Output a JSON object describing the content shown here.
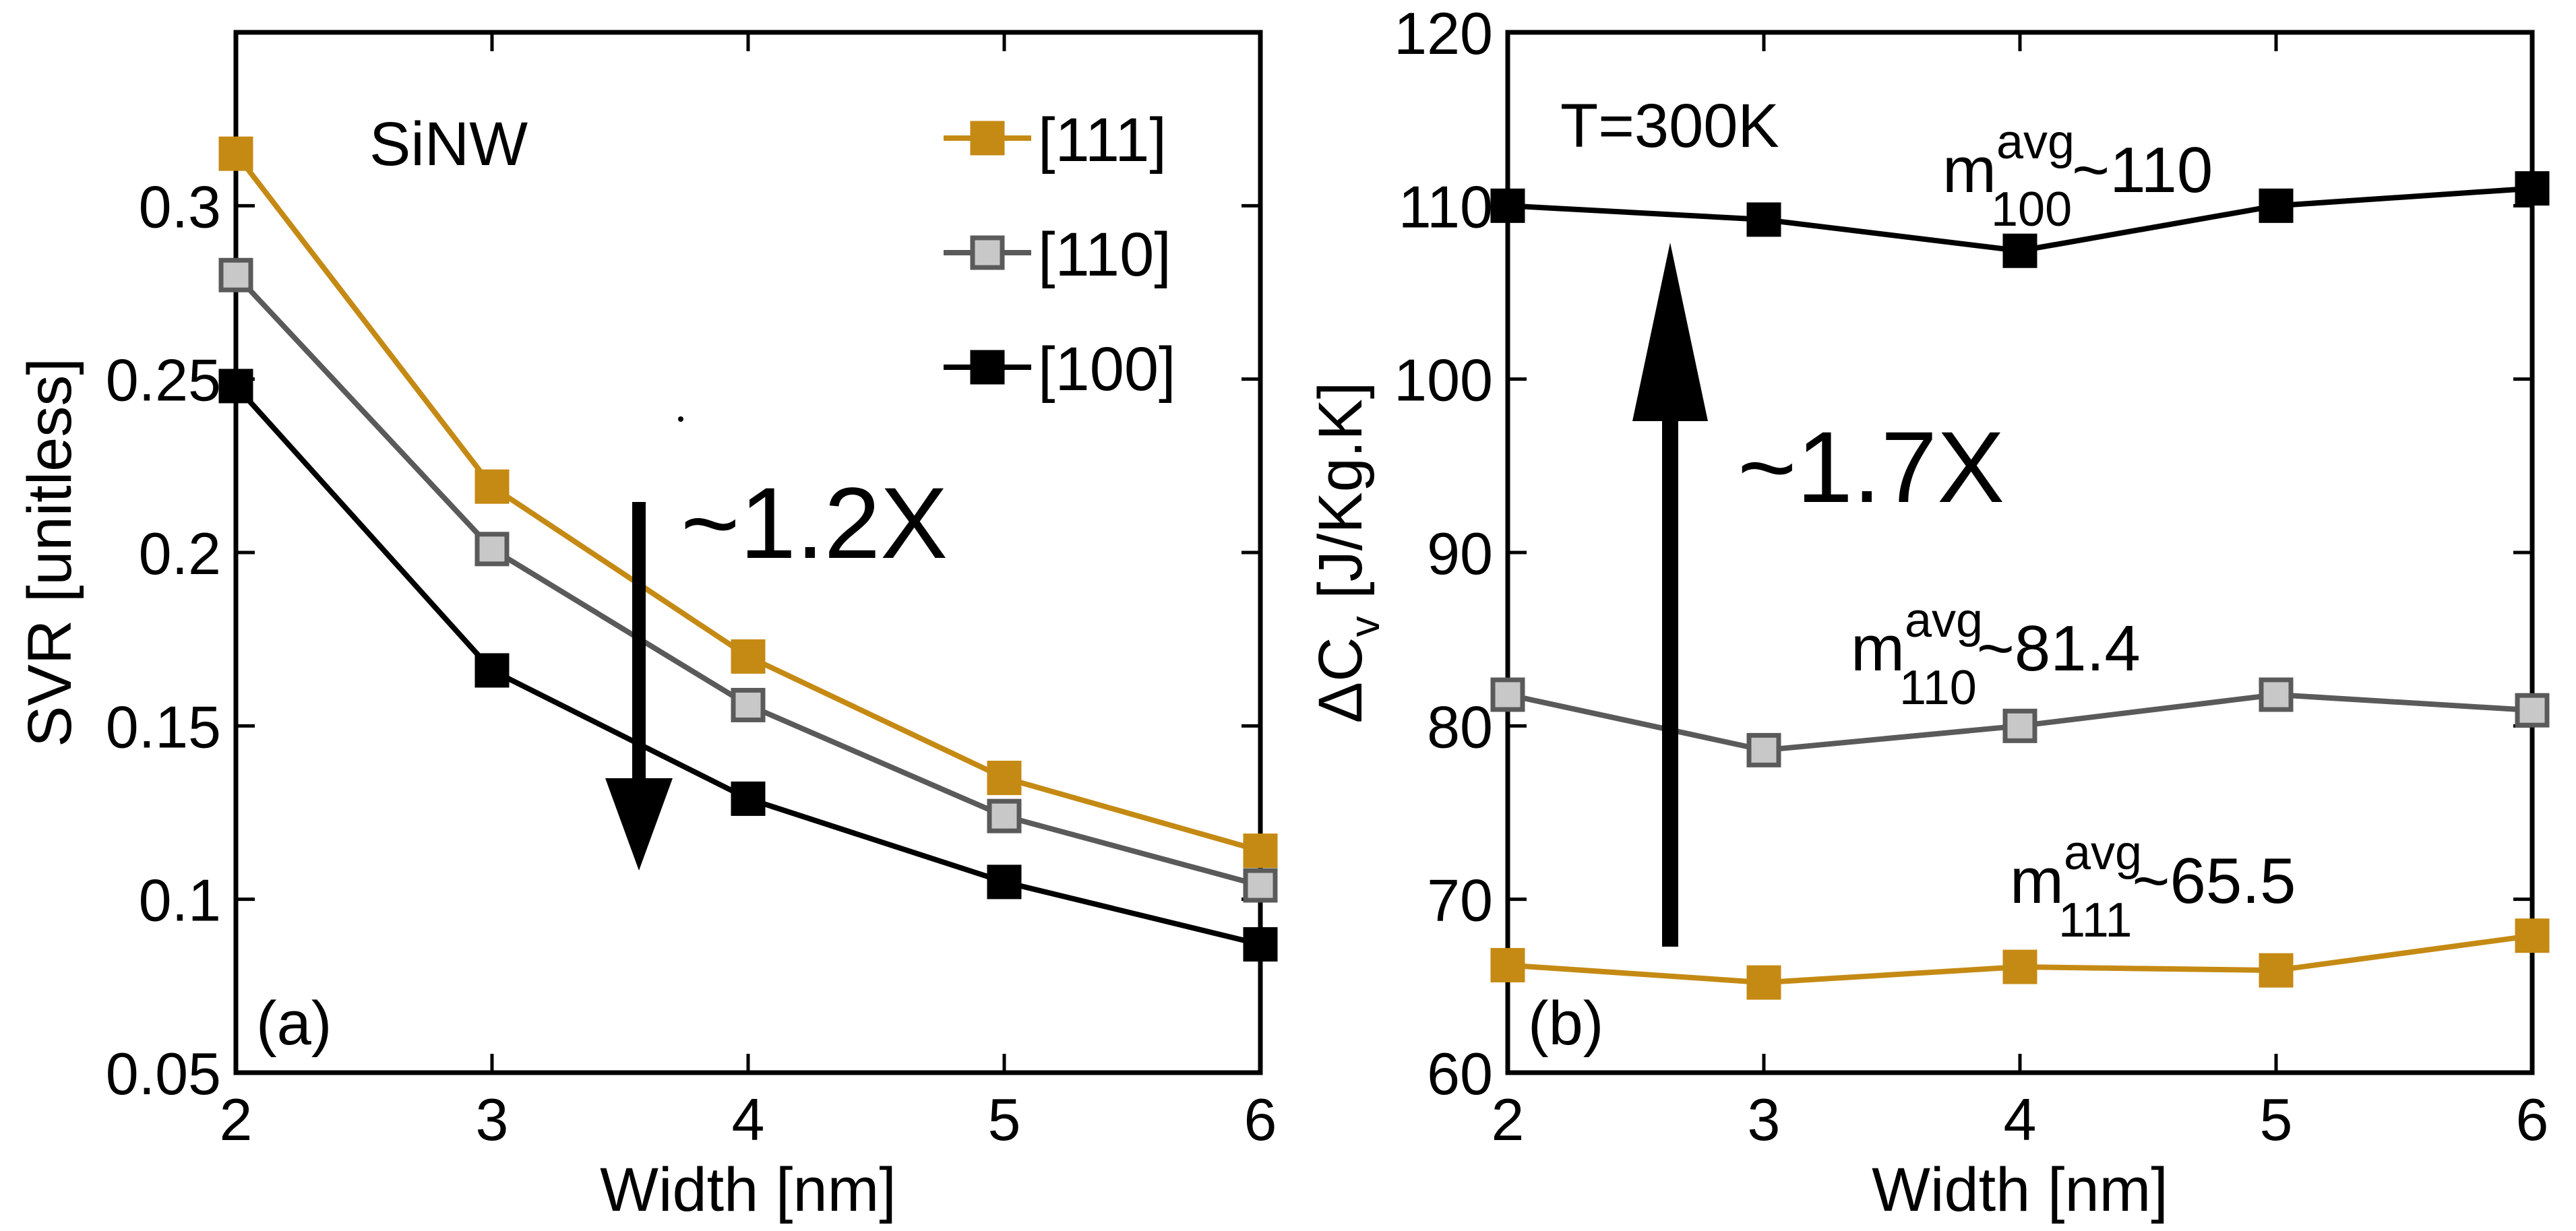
{
  "chart_data": [
    {
      "type": "line",
      "panel_label": "(a)",
      "annotation": "SiNW",
      "arrow_label": "~1.2X",
      "xlabel": "Width [nm]",
      "ylabel": "SVR [unitless]",
      "xlim": [
        2,
        6
      ],
      "ylim": [
        0.05,
        0.35
      ],
      "x_ticks": [
        2,
        3,
        4,
        5,
        6
      ],
      "x_tick_labels": [
        "2",
        "3",
        "4",
        "5",
        "6"
      ],
      "y_ticks": [
        0.05,
        0.1,
        0.15,
        0.2,
        0.25,
        0.3
      ],
      "y_tick_labels": [
        "0.05",
        "0.1",
        "0.15",
        "0.2",
        "0.25",
        "0.3"
      ],
      "grid": false,
      "legend_position": "top-right",
      "x": [
        2,
        3,
        4,
        5,
        6
      ],
      "series": [
        {
          "name": "[111]",
          "color": "#c58a14",
          "marker_fill": "#c58a14",
          "values": [
            0.315,
            0.219,
            0.17,
            0.135,
            0.114
          ]
        },
        {
          "name": "[110]",
          "color": "#5a5a5a",
          "marker_fill": "#c8c8c8",
          "values": [
            0.28,
            0.201,
            0.156,
            0.124,
            0.104
          ]
        },
        {
          "name": "[100]",
          "color": "#000000",
          "marker_fill": "#000000",
          "values": [
            0.248,
            0.166,
            0.129,
            0.105,
            0.087
          ]
        }
      ]
    },
    {
      "type": "line",
      "panel_label": "(b)",
      "annotation": "T=300K",
      "arrow_label": "~1.7X",
      "xlabel": "Width [nm]",
      "ylabel": "ΔC_v [J/Kg.K]",
      "xlim": [
        2,
        6
      ],
      "ylim": [
        60,
        120
      ],
      "x_ticks": [
        2,
        3,
        4,
        5,
        6
      ],
      "x_tick_labels": [
        "2",
        "3",
        "4",
        "5",
        "6"
      ],
      "y_ticks": [
        60,
        70,
        80,
        90,
        100,
        110,
        120
      ],
      "y_tick_labels": [
        "60",
        "70",
        "80",
        "90",
        "100",
        "110",
        "120"
      ],
      "grid": false,
      "x": [
        2,
        3,
        4,
        5,
        6
      ],
      "series": [
        {
          "color": "#000000",
          "marker_fill": "#000000",
          "values": [
            110,
            109.2,
            107.4,
            110,
            111
          ],
          "label": {
            "base": "m",
            "sup": "avg",
            "sub": "100",
            "tail": "~110"
          }
        },
        {
          "color": "#5a5a5a",
          "marker_fill": "#c8c8c8",
          "values": [
            81.8,
            78.6,
            80,
            81.8,
            80.9
          ],
          "label": {
            "base": "m",
            "sup": "avg",
            "sub": "110",
            "tail": "~81.4"
          }
        },
        {
          "color": "#c58a14",
          "marker_fill": "#c58a14",
          "values": [
            66.2,
            65.2,
            66.1,
            65.9,
            67.9
          ],
          "label": {
            "base": "m",
            "sup": "avg",
            "sub": "111",
            "tail": "~65.5"
          }
        }
      ]
    }
  ]
}
